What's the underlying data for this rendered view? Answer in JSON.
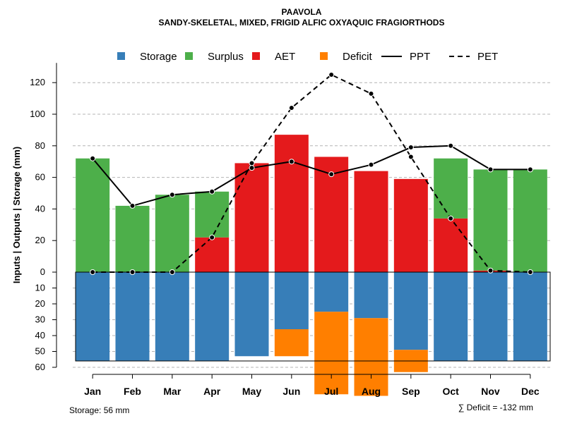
{
  "chart_data": {
    "type": "bar",
    "title": "PAAVOLA",
    "subtitle": "SANDY-SKELETAL, MIXED, FRIGID ALFIC OXYAQUIC FRAGIORTHODS",
    "ylabel": "Inputs | Outputs | Storage    (mm)",
    "categories": [
      "Jan",
      "Feb",
      "Mar",
      "Apr",
      "May",
      "Jun",
      "Jul",
      "Aug",
      "Sep",
      "Oct",
      "Nov",
      "Dec"
    ],
    "ylim_upper": [
      0,
      130
    ],
    "ylim_lower": [
      0,
      60
    ],
    "yticks_upper": [
      0,
      20,
      40,
      60,
      80,
      100,
      120
    ],
    "yticks_lower": [
      10,
      20,
      30,
      40,
      50,
      60
    ],
    "storage_capacity": 56,
    "series": [
      {
        "name": "Storage",
        "color": "#377EB8",
        "values": [
          56,
          56,
          56,
          56,
          53,
          36,
          25,
          29,
          49,
          56,
          56,
          56
        ]
      },
      {
        "name": "Surplus",
        "color": "#4DAF4A",
        "values": [
          72,
          42,
          49,
          29,
          0,
          0,
          0,
          0,
          0,
          38,
          64,
          65
        ]
      },
      {
        "name": "AET",
        "color": "#E41A1C",
        "values": [
          0,
          0,
          0,
          22,
          69,
          87,
          73,
          64,
          59,
          34,
          1,
          0
        ]
      },
      {
        "name": "Deficit",
        "color": "#FF7F00",
        "values": [
          0,
          0,
          0,
          0,
          0,
          17,
          52,
          49,
          14,
          0,
          0,
          0
        ]
      },
      {
        "name": "PPT",
        "color": "#000000",
        "values": [
          72,
          42,
          49,
          51,
          66,
          70,
          62,
          68,
          79,
          80,
          65,
          65
        ]
      },
      {
        "name": "PET",
        "color": "#000000",
        "values": [
          0,
          0,
          0,
          22,
          69,
          104,
          125,
          113,
          73,
          34,
          1,
          0
        ]
      }
    ],
    "legend": [
      "Storage",
      "Surplus",
      "AET",
      "Deficit",
      "PPT",
      "PET"
    ],
    "legend_position": "top",
    "grid": true,
    "footer_left": "Storage: 56 mm",
    "footer_right": "∑ Deficit = -132 mm"
  }
}
